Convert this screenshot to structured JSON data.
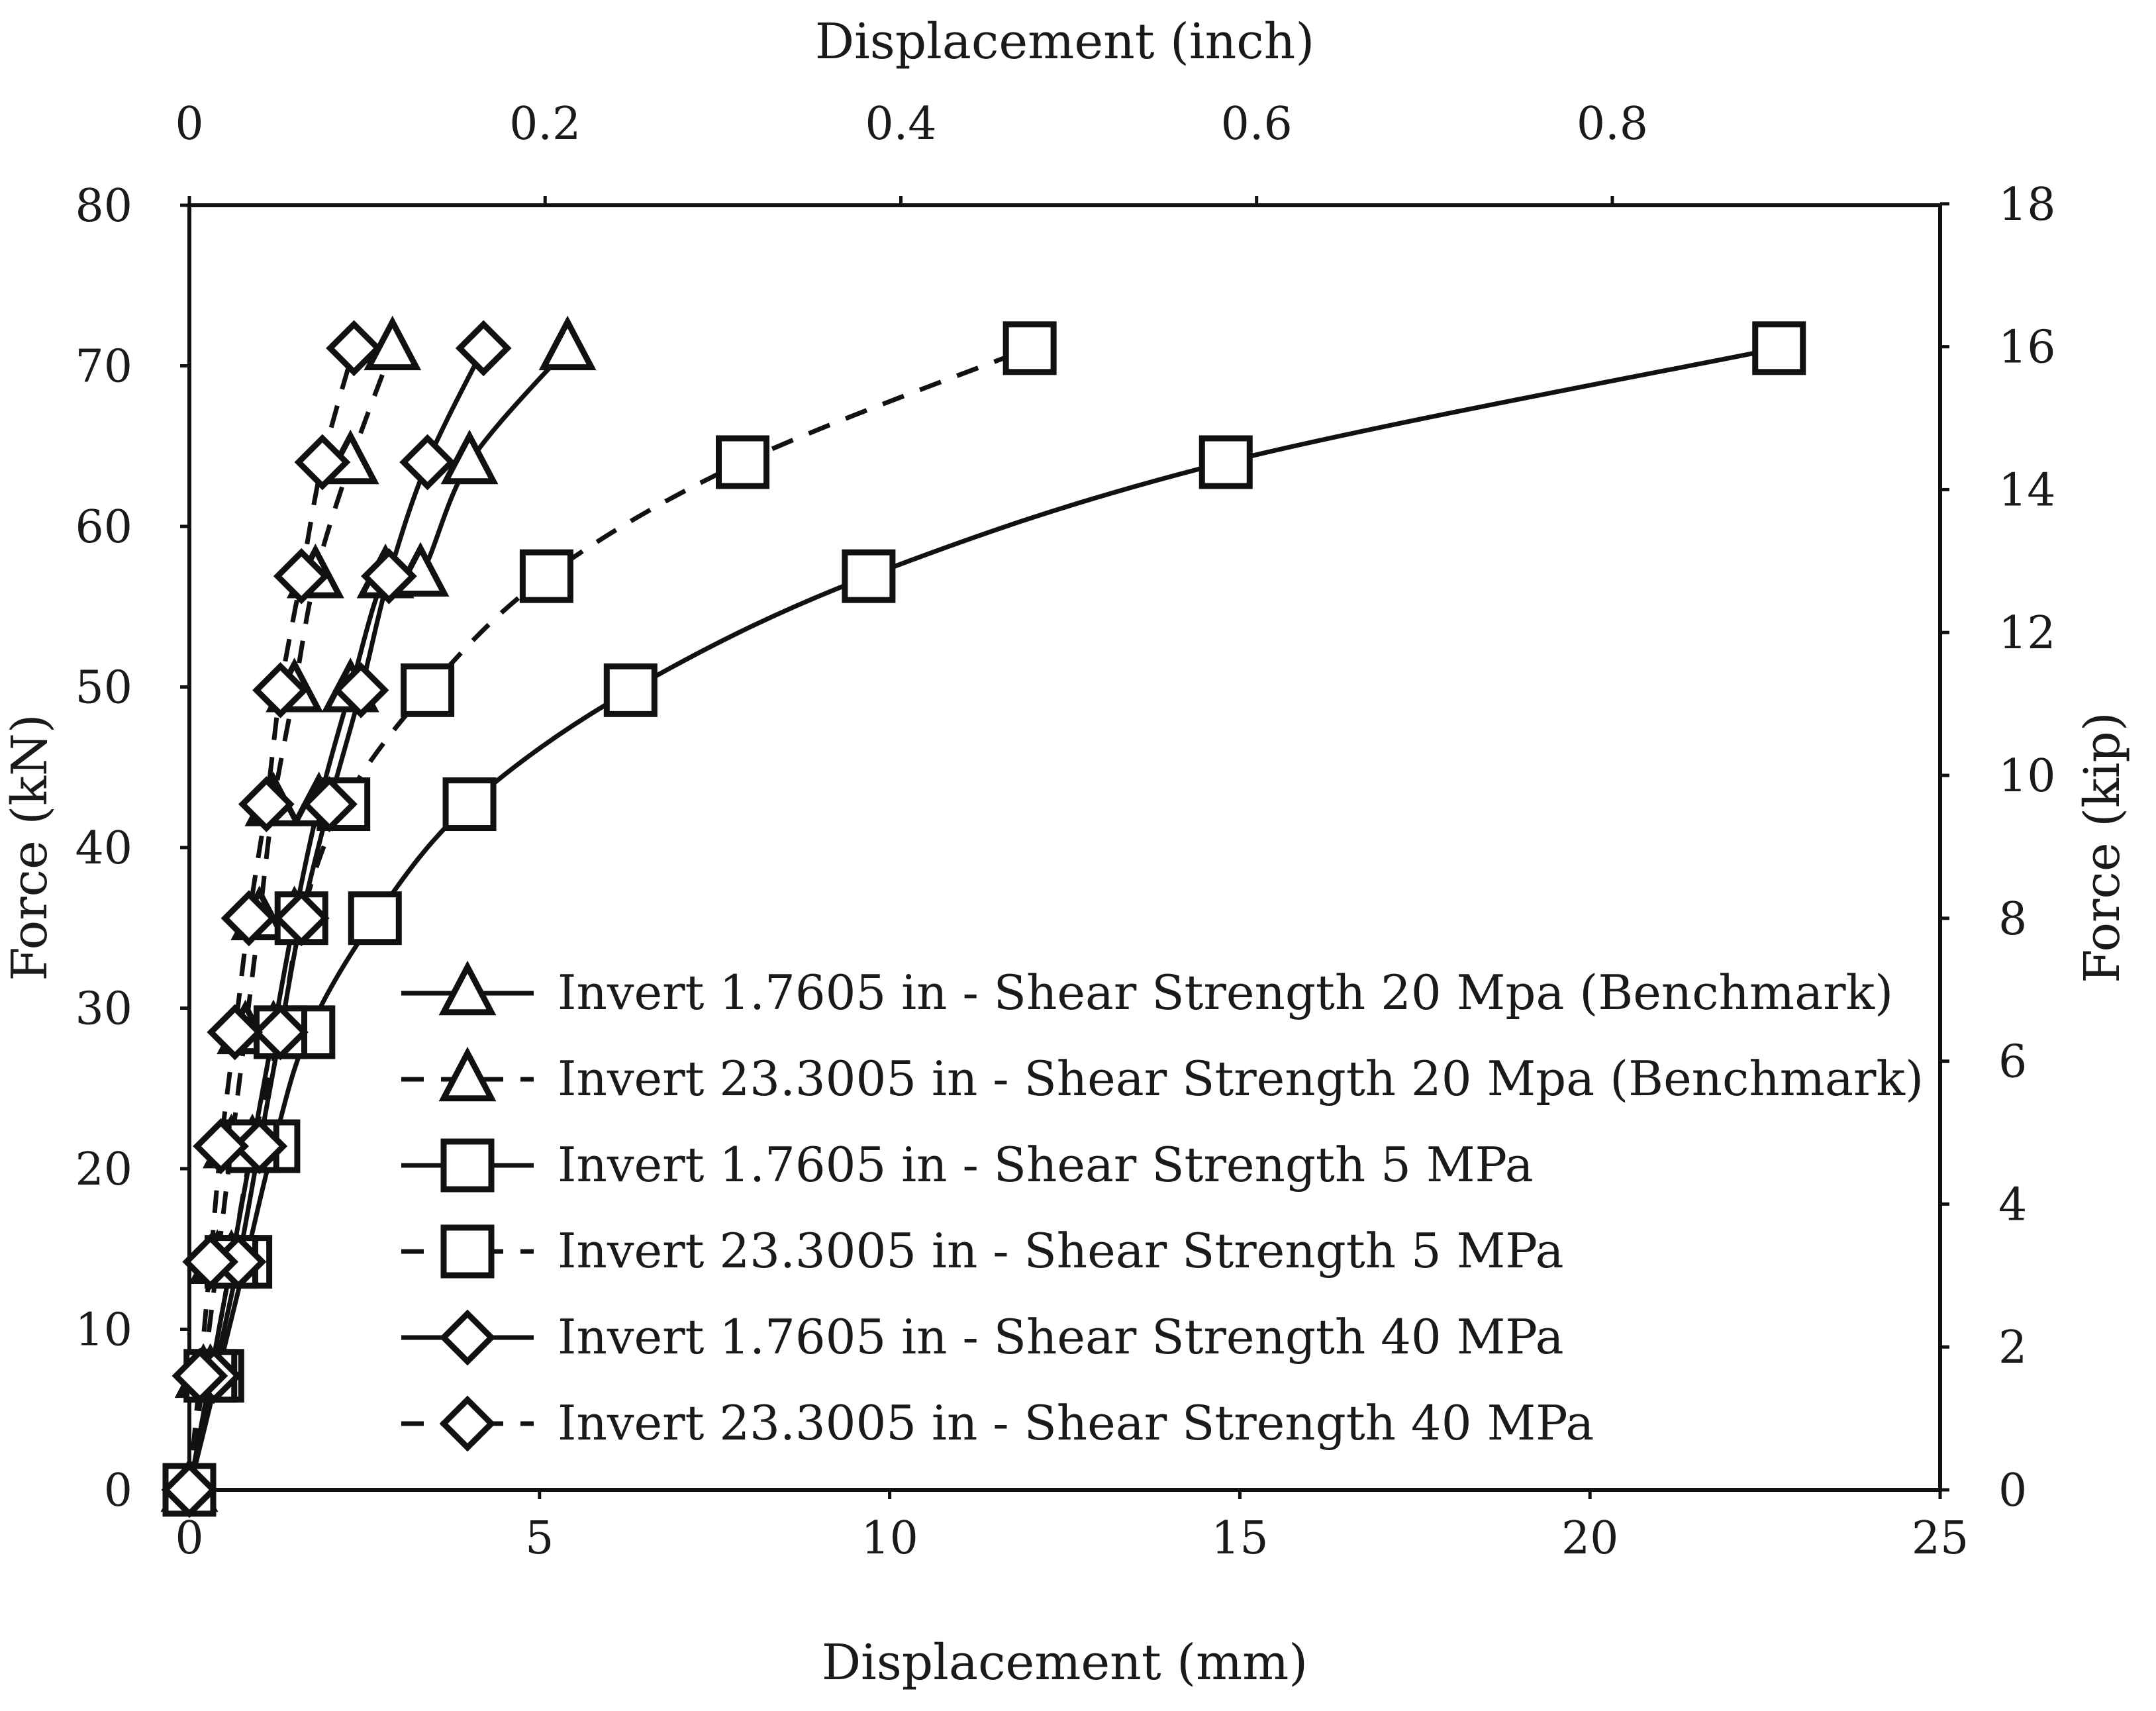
{
  "chart_data": {
    "type": "scatter",
    "x_bottom": {
      "label": "Displacement (mm)",
      "range": [
        0,
        25
      ],
      "ticks": [
        0,
        5,
        10,
        15,
        20,
        25
      ]
    },
    "x_top": {
      "label": "Displacement (inch)",
      "range": [
        0,
        0.9843
      ],
      "ticks": [
        0,
        0.2,
        0.4,
        0.6,
        0.8
      ],
      "tick_labels": [
        "0",
        "0.2",
        "0.4",
        "0.6",
        "0.8"
      ]
    },
    "y_left": {
      "label": "Force (kN)",
      "range": [
        0,
        80
      ],
      "ticks": [
        0,
        10,
        20,
        30,
        40,
        50,
        60,
        70,
        80
      ]
    },
    "y_right": {
      "label": "Force (kip)",
      "range": [
        0,
        17.98
      ],
      "ticks": [
        0,
        2,
        4,
        6,
        8,
        10,
        12,
        14,
        16,
        18
      ]
    },
    "grid": false,
    "legend_position": "center-right inside plot",
    "series": [
      {
        "name": "Invert 1.7605 in - Shear Strength 20 Mpa (Benchmark)",
        "marker": "triangle",
        "line": "solid",
        "x": [
          0,
          0.3,
          0.6,
          0.9,
          1.2,
          1.5,
          1.85,
          2.3,
          2.8,
          3.3,
          4.0,
          5.4
        ],
        "y": [
          0,
          7.1,
          14.2,
          21.4,
          28.5,
          35.6,
          42.7,
          49.8,
          56.9,
          57,
          64.0,
          71.1
        ]
      },
      {
        "name": "Invert 23.3005 in - Shear Strength 20 Mpa (Benchmark)",
        "marker": "triangle",
        "line": "dashed",
        "x": [
          0,
          0.2,
          0.4,
          0.6,
          0.8,
          1.0,
          1.2,
          1.5,
          1.8,
          2.3,
          2.9
        ],
        "y": [
          0,
          7.1,
          14.2,
          21.4,
          28.5,
          35.6,
          42.7,
          49.8,
          56.9,
          64.0,
          71.1
        ]
      },
      {
        "name": "Invert 1.7605 in - Shear Strength 5 MPa",
        "marker": "square",
        "line": "solid",
        "x": [
          0,
          0.4,
          0.8,
          1.2,
          1.7,
          2.65,
          4.0,
          6.3,
          9.7,
          14.8,
          22.7
        ],
        "y": [
          0,
          7.1,
          14.2,
          21.4,
          28.5,
          35.6,
          42.7,
          49.8,
          56.9,
          64.0,
          71.1
        ]
      },
      {
        "name": "Invert 23.3005 in - Shear Strength 5 MPa",
        "marker": "square",
        "line": "dashed",
        "x": [
          0,
          0.3,
          0.6,
          0.9,
          1.3,
          1.6,
          2.2,
          3.4,
          5.1,
          7.9,
          12.0
        ],
        "y": [
          0,
          7.1,
          14.2,
          21.4,
          28.5,
          35.6,
          42.7,
          49.8,
          56.9,
          64.0,
          71.1
        ]
      },
      {
        "name": "Invert 1.7605 in - Shear Strength 40 MPa",
        "marker": "diamond",
        "line": "solid",
        "x": [
          0,
          0.35,
          0.7,
          1.0,
          1.3,
          1.6,
          2.0,
          2.45,
          2.85,
          3.4,
          4.2
        ],
        "y": [
          0,
          7.1,
          14.2,
          21.4,
          28.5,
          35.6,
          42.7,
          49.8,
          56.9,
          64.0,
          71.1
        ]
      },
      {
        "name": "Invert 23.3005 in - Shear Strength 40 MPa",
        "marker": "diamond",
        "line": "dashed",
        "x": [
          0,
          0.15,
          0.3,
          0.45,
          0.65,
          0.85,
          1.1,
          1.3,
          1.6,
          1.9,
          2.35
        ],
        "y": [
          0,
          7.1,
          14.2,
          21.4,
          28.5,
          35.6,
          42.7,
          49.8,
          56.9,
          64.0,
          71.1
        ]
      }
    ]
  }
}
